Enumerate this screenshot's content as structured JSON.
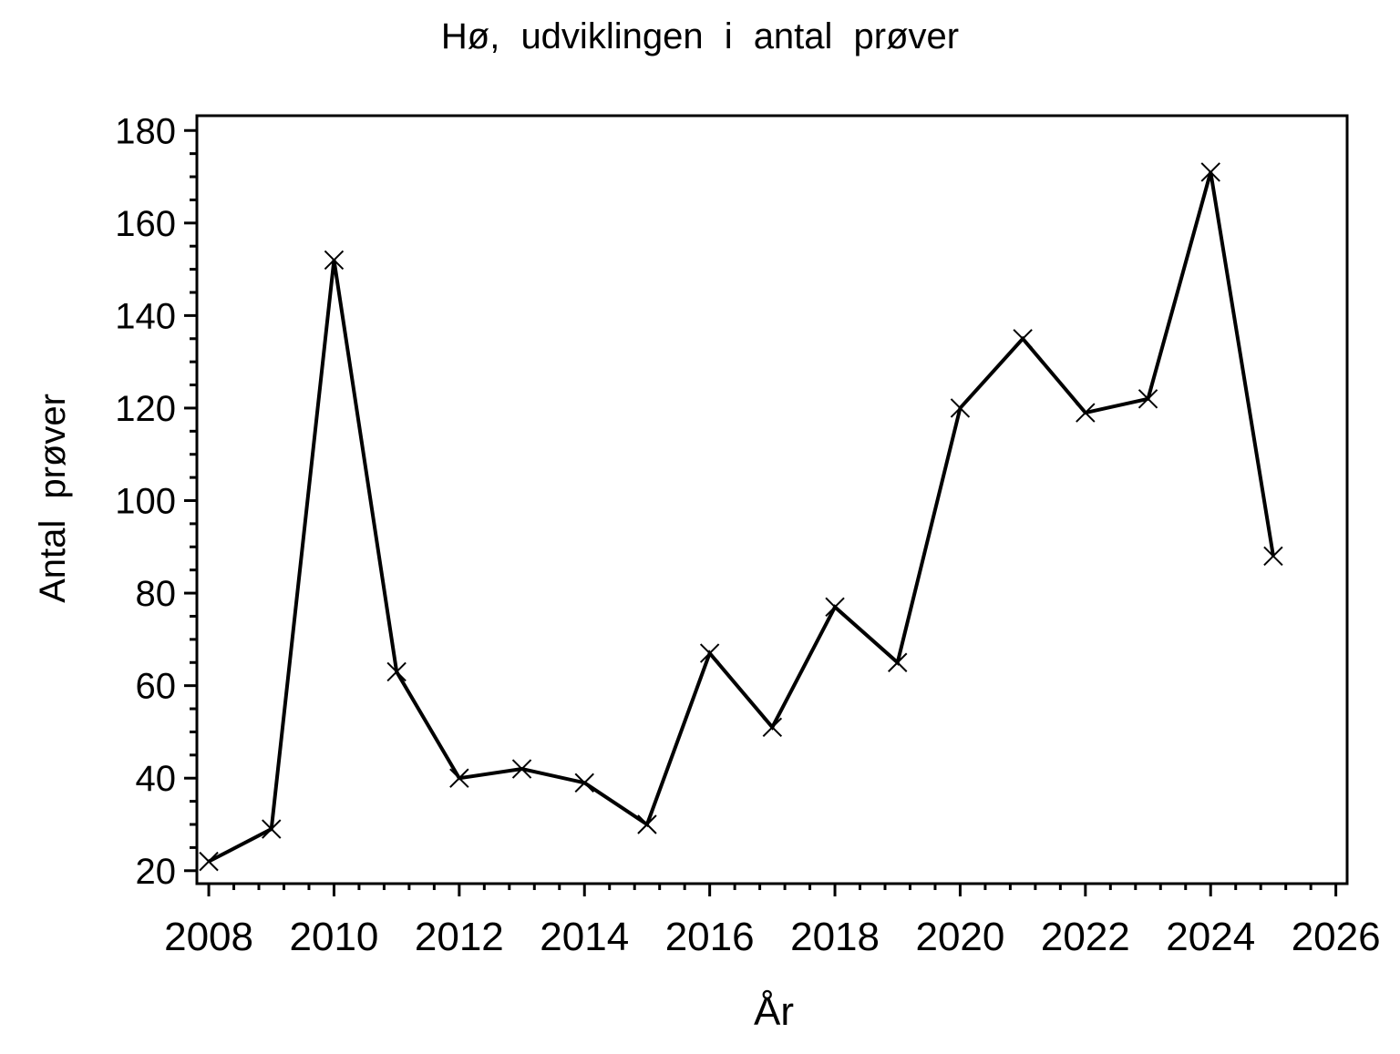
{
  "page": {
    "background": "#ffffff"
  },
  "chart_data": {
    "type": "line",
    "title": "Hø, udviklingen i antal prøver",
    "xlabel": "År",
    "ylabel": "Antal prøver",
    "x": [
      2008,
      2009,
      2010,
      2011,
      2012,
      2013,
      2014,
      2015,
      2016,
      2017,
      2018,
      2019,
      2020,
      2021,
      2022,
      2023,
      2024,
      2025
    ],
    "series": [
      {
        "name": "Antal prøver",
        "values": [
          22,
          29,
          152,
          63,
          40,
          42,
          39,
          30,
          67,
          51,
          77,
          65,
          120,
          135,
          119,
          122,
          171,
          88
        ]
      }
    ],
    "x_major_ticks": [
      2008,
      2010,
      2012,
      2014,
      2016,
      2018,
      2020,
      2022,
      2024,
      2026
    ],
    "x_minor_ticks_per_interval": 4,
    "y_major_ticks": [
      20,
      40,
      60,
      80,
      100,
      120,
      140,
      160,
      180
    ],
    "y_minor_step": 5,
    "xlim": [
      2007.81,
      2026.18
    ],
    "ylim": [
      17.2,
      183.2
    ],
    "grid": false,
    "legend": false,
    "marker": "x",
    "line_color": "#000000",
    "marker_color": "#000000",
    "text_color": "#000000",
    "frame_color": "#000000"
  }
}
